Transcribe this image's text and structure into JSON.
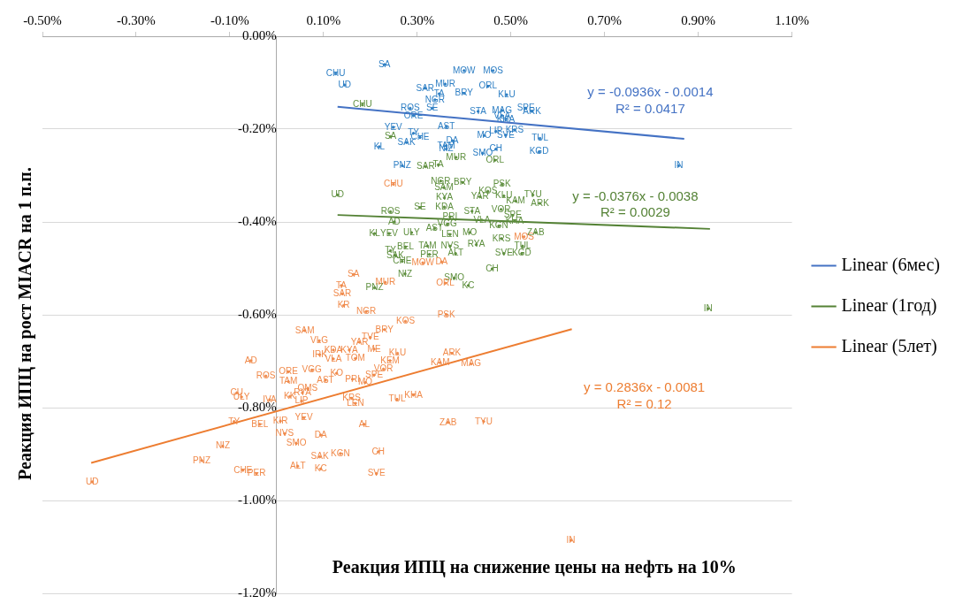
{
  "chart_data": {
    "type": "scatter",
    "xlabel": "Реакция ИПЦ на снижение цены на нефть на 10%",
    "ylabel": "Реакция ИПЦ на рост MIACR на 1 п.п.",
    "xlim": [
      -0.5,
      1.1
    ],
    "ylim": [
      -1.2,
      0
    ],
    "xticks": [
      {
        "value": -0.5,
        "label": "-0.50%"
      },
      {
        "value": -0.3,
        "label": "-0.30%"
      },
      {
        "value": -0.1,
        "label": "-0.10%"
      },
      {
        "value": 0.1,
        "label": "0.10%"
      },
      {
        "value": 0.3,
        "label": "0.30%"
      },
      {
        "value": 0.5,
        "label": "0.50%"
      },
      {
        "value": 0.7,
        "label": "0.70%"
      },
      {
        "value": 0.9,
        "label": "0.90%"
      },
      {
        "value": 1.1,
        "label": "1.10%"
      }
    ],
    "yticks": [
      {
        "value": 0,
        "label": "0.00%"
      },
      {
        "value": -0.2,
        "label": "-0.20%"
      },
      {
        "value": -0.4,
        "label": "-0.40%"
      },
      {
        "value": -0.6,
        "label": "-0.60%"
      },
      {
        "value": -0.8,
        "label": "-0.80%"
      },
      {
        "value": -1,
        "label": "-1.00%"
      },
      {
        "value": -1.2,
        "label": "-1.20%"
      }
    ],
    "grid": "y",
    "legend": "right",
    "series": [
      {
        "color": "#2e7fc4",
        "marker": "circle",
        "x": [
          0.23,
          0.126,
          0.145,
          0.4,
          0.462,
          0.36,
          0.317,
          0.347,
          0.451,
          0.4,
          0.491,
          0.338,
          0.285,
          0.332,
          0.532,
          0.545,
          0.481,
          0.43,
          0.481,
          0.292,
          0.489,
          0.249,
          0.292,
          0.306,
          0.277,
          0.219,
          0.362,
          0.508,
          0.468,
          0.443,
          0.489,
          0.562,
          0.56,
          0.375,
          0.362,
          0.362,
          0.44,
          0.468,
          0.268,
          0.858
        ],
        "values": [
          -0.061,
          -0.081,
          -0.105,
          -0.074,
          -0.074,
          -0.103,
          -0.112,
          -0.124,
          -0.108,
          -0.123,
          -0.126,
          -0.137,
          -0.155,
          -0.155,
          -0.155,
          -0.162,
          -0.16,
          -0.162,
          -0.171,
          -0.171,
          -0.18,
          -0.196,
          -0.209,
          -0.218,
          -0.229,
          -0.238,
          -0.195,
          -0.202,
          -0.205,
          -0.214,
          -0.213,
          -0.22,
          -0.249,
          -0.225,
          -0.236,
          -0.243,
          -0.252,
          -0.243,
          -0.279,
          -0.279
        ],
        "value_labels": [
          "SA",
          "CHU",
          "UD",
          "MOW",
          "MOS",
          "MUR",
          "SAR",
          "TA",
          "ORL",
          "BRY",
          "KLU",
          "NGR",
          "ROS",
          "SE",
          "SPE",
          "ARK",
          "MAG",
          "STA",
          "VLA",
          "ORE",
          "KHA",
          "YEV",
          "TY",
          "CHE",
          "SAK",
          "KL",
          "AST",
          "KRS",
          "LIP",
          "MO",
          "SVE",
          "TUL",
          "KGD",
          "DA",
          "TAM",
          "NIZ",
          "SMO",
          "CH",
          "PNZ",
          "IN"
        ]
      },
      {
        "color": "#5e8f3e",
        "marker": "circle",
        "x": [
          0.183,
          0.13,
          0.243,
          0.383,
          0.466,
          0.318,
          0.345,
          0.35,
          0.357,
          0.397,
          0.481,
          0.451,
          0.434,
          0.485,
          0.547,
          0.51,
          0.562,
          0.358,
          0.358,
          0.306,
          0.479,
          0.417,
          0.243,
          0.251,
          0.37,
          0.504,
          0.438,
          0.508,
          0.364,
          0.474,
          0.209,
          0.24,
          0.288,
          0.337,
          0.37,
          0.412,
          0.553,
          0.48,
          0.322,
          0.37,
          0.426,
          0.525,
          0.275,
          0.243,
          0.253,
          0.326,
          0.382,
          0.485,
          0.523,
          0.268,
          0.46,
          0.274,
          0.379,
          0.409,
          0.209,
          0.921
        ],
        "values": [
          -0.148,
          -0.342,
          -0.216,
          -0.261,
          -0.267,
          -0.281,
          -0.277,
          -0.312,
          -0.326,
          -0.315,
          -0.319,
          -0.334,
          -0.346,
          -0.344,
          -0.342,
          -0.355,
          -0.36,
          -0.348,
          -0.368,
          -0.369,
          -0.373,
          -0.377,
          -0.378,
          -0.4,
          -0.389,
          -0.386,
          -0.396,
          -0.398,
          -0.405,
          -0.409,
          -0.425,
          -0.425,
          -0.423,
          -0.414,
          -0.427,
          -0.423,
          -0.423,
          -0.436,
          -0.452,
          -0.452,
          -0.449,
          -0.452,
          -0.454,
          -0.462,
          -0.472,
          -0.47,
          -0.468,
          -0.468,
          -0.468,
          -0.485,
          -0.501,
          -0.512,
          -0.521,
          -0.537,
          -0.542,
          -0.587
        ],
        "value_labels": [
          "CHU",
          "UD",
          "SA",
          "MUR",
          "ORL",
          "SAR",
          "TA",
          "NGR",
          "SAM",
          "BRY",
          "PSK",
          "KOS",
          "YAR",
          "KLU",
          "TYU",
          "KAM",
          "ARK",
          "KYA",
          "KDA",
          "SE",
          "VOR",
          "STA",
          "ROS",
          "AD",
          "PRI",
          "SPE",
          "VLA",
          "KHA",
          "VGG",
          "KGN",
          "KL",
          "YEV",
          "ULY",
          "AST",
          "LEN",
          "MO",
          "ZAB",
          "KRS",
          "TAM",
          "NVS",
          "RYA",
          "TUL",
          "BEL",
          "TY",
          "SAK",
          "PER",
          "ALT",
          "SVE",
          "KGD",
          "CHE",
          "CH",
          "NIZ",
          "SMO",
          "KC",
          "PNZ",
          "IN"
        ]
      },
      {
        "color": "#f08a4b",
        "marker": "circle",
        "x": [
          0.249,
          0.312,
          0.352,
          0.528,
          0.164,
          0.232,
          0.36,
          0.138,
          0.14,
          0.143,
          0.191,
          0.362,
          0.275,
          0.06,
          0.23,
          0.2,
          0.091,
          0.177,
          0.121,
          0.155,
          0.208,
          0.092,
          0.258,
          0.374,
          0.415,
          0.121,
          0.168,
          0.349,
          0.242,
          -0.055,
          0.228,
          0.075,
          0.128,
          0.025,
          -0.023,
          0.025,
          0.104,
          0.162,
          0.208,
          0.189,
          0.066,
          0.055,
          0.028,
          -0.085,
          -0.075,
          0.053,
          0.16,
          0.168,
          0.257,
          0.292,
          -0.015,
          -0.036,
          -0.091,
          0.008,
          0.058,
          0.187,
          0.366,
          0.442,
          0.017,
          0.094,
          0.042,
          -0.115,
          0.092,
          0.136,
          0.217,
          -0.16,
          0.045,
          0.094,
          -0.072,
          -0.043,
          0.213,
          -0.394,
          0.628
        ],
        "values": [
          -0.319,
          -0.488,
          -0.486,
          -0.432,
          -0.513,
          -0.53,
          -0.532,
          -0.537,
          -0.555,
          -0.58,
          -0.593,
          -0.6,
          -0.614,
          -0.634,
          -0.632,
          -0.649,
          -0.656,
          -0.659,
          -0.676,
          -0.676,
          -0.674,
          -0.686,
          -0.683,
          -0.683,
          -0.706,
          -0.695,
          -0.694,
          -0.703,
          -0.699,
          -0.699,
          -0.717,
          -0.719,
          -0.726,
          -0.723,
          -0.732,
          -0.744,
          -0.741,
          -0.739,
          -0.73,
          -0.746,
          -0.759,
          -0.768,
          -0.776,
          -0.768,
          -0.777,
          -0.786,
          -0.78,
          -0.791,
          -0.782,
          -0.773,
          -0.783,
          -0.836,
          -0.83,
          -0.829,
          -0.822,
          -0.836,
          -0.832,
          -0.83,
          -0.856,
          -0.859,
          -0.877,
          -0.883,
          -0.906,
          -0.899,
          -0.895,
          -0.914,
          -0.926,
          -0.932,
          -0.935,
          -0.942,
          -0.942,
          -0.96,
          -1.086
        ],
        "value_labels": [
          "CHU",
          "MOW",
          "DA",
          "MOS",
          "SA",
          "MUR",
          "ORL",
          "TA",
          "SAR",
          "KR",
          "NGR",
          "PSK",
          "KOS",
          "SAM",
          "BRY",
          "TVE",
          "VLG",
          "YAR",
          "KDA",
          "KYA",
          "ME",
          "IRK",
          "KLU",
          "ARK",
          "MAG",
          "VLA",
          "TOM",
          "KAM",
          "KEM",
          "AD",
          "VOR",
          "VGG",
          "KO",
          "ORE",
          "ROS",
          "TAM",
          "AST",
          "PRI",
          "SPE",
          "MO",
          "OMS",
          "RYA",
          "KK",
          "CU",
          "ULY",
          "LIP",
          "KRS",
          "LEN",
          "TUL",
          "KHA",
          "IVA",
          "BEL",
          "TY",
          "KIR",
          "YEV",
          "AL",
          "ZAB",
          "TYU",
          "NVS",
          "DA",
          "SMO",
          "NIZ",
          "SAK",
          "KGN",
          "CH",
          "PNZ",
          "ALT",
          "KC",
          "CHE",
          "PER",
          "SVE",
          "UD",
          "IN"
        ]
      },
      {
        "type": "line",
        "name": "Linear (6мес)",
        "color": "#4472c4",
        "x": [
          0.13,
          0.87
        ],
        "values": [
          -0.152,
          -0.221
        ]
      },
      {
        "type": "line",
        "name": "Linear (1год)",
        "color": "#548235",
        "x": [
          0.13,
          0.925
        ],
        "values": [
          -0.385,
          -0.415
        ]
      },
      {
        "type": "line",
        "name": "Linear (5лет)",
        "color": "#ed7d31",
        "x": [
          -0.396,
          0.63
        ],
        "values": [
          -0.919,
          -0.631
        ]
      }
    ],
    "annotations": [
      "y = -0.0936x - 0.0014",
      "R² = 0.0417",
      "y = -0.0376x - 0.0038",
      "R² = 0.0029",
      "y = 0.2836x - 0.0081",
      "R² = 0.12"
    ]
  }
}
